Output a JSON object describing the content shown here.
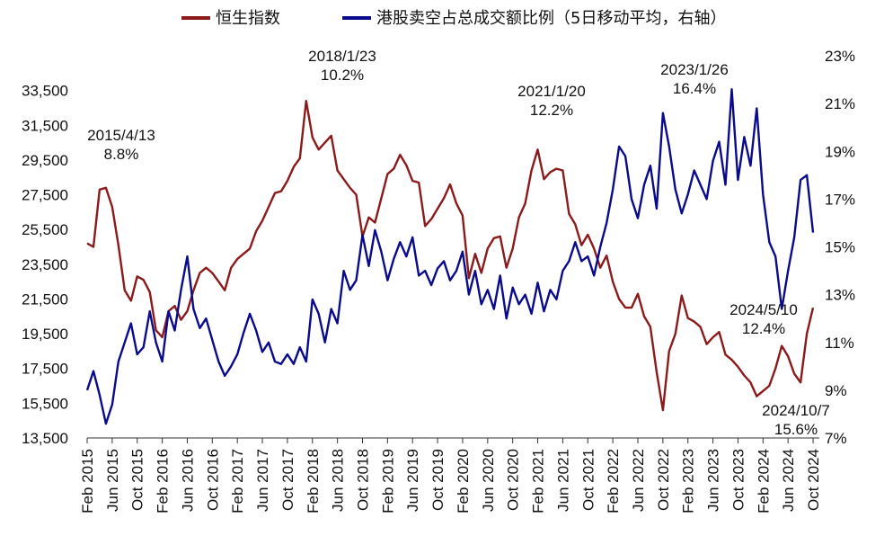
{
  "chart_data": {
    "type": "line",
    "legend": {
      "placement": "top-center",
      "entries": [
        {
          "label": "恒生指数",
          "color": "#8B1A1A"
        },
        {
          "label": "港股卖空占总成交额比例（5日移动平均，右轴）",
          "color": "#0A0A8C"
        }
      ]
    },
    "x_axis": {
      "range": [
        "2015-02",
        "2024-11"
      ],
      "tick_labels": [
        "Feb 2015",
        "Jun 2015",
        "Oct 2015",
        "Feb 2016",
        "Jun 2016",
        "Oct 2016",
        "Feb 2017",
        "Jun 2017",
        "Oct 2017",
        "Feb 2018",
        "Jun 2018",
        "Oct 2018",
        "Feb 2019",
        "Jun 2019",
        "Oct 2019",
        "Feb 2020",
        "Jun 2020",
        "Oct 2020",
        "Feb 2021",
        "Jun 2021",
        "Oct 2021",
        "Feb 2022",
        "Jun 2022",
        "Oct 2022",
        "Feb 2023",
        "Jun 2023",
        "Oct 2023",
        "Feb 2024",
        "Jun 2024",
        "Oct 2024"
      ]
    },
    "y_left": {
      "range": [
        13500,
        35500
      ],
      "tick_labels": [
        "13,500",
        "15,500",
        "17,500",
        "19,500",
        "21,500",
        "23,500",
        "25,500",
        "27,500",
        "29,500",
        "31,500",
        "33,500"
      ]
    },
    "y_right": {
      "range": [
        7,
        23
      ],
      "tick_labels": [
        "7%",
        "9%",
        "11%",
        "13%",
        "15%",
        "17%",
        "19%",
        "21%",
        "23%"
      ]
    },
    "grid": false,
    "annotations": [
      {
        "date": "2015/4/13",
        "value": "8.8%"
      },
      {
        "date": "2018/1/23",
        "value": "10.2%"
      },
      {
        "date": "2021/1/20",
        "value": "12.2%"
      },
      {
        "date": "2023/1/26",
        "value": "16.4%"
      },
      {
        "date": "2024/5/10",
        "value": "12.4%"
      },
      {
        "date": "2024/10/7",
        "value": "15.6%"
      }
    ],
    "series": [
      {
        "name": "恒生指数",
        "axis": "left",
        "color": "#8B1A1A",
        "x": [
          "2015-02",
          "2015-03",
          "2015-04",
          "2015-05",
          "2015-06",
          "2015-07",
          "2015-08",
          "2015-09",
          "2015-10",
          "2015-11",
          "2015-12",
          "2016-01",
          "2016-02",
          "2016-03",
          "2016-04",
          "2016-05",
          "2016-06",
          "2016-07",
          "2016-08",
          "2016-09",
          "2016-10",
          "2016-11",
          "2016-12",
          "2017-01",
          "2017-02",
          "2017-03",
          "2017-04",
          "2017-05",
          "2017-06",
          "2017-07",
          "2017-08",
          "2017-09",
          "2017-10",
          "2017-11",
          "2017-12",
          "2018-01",
          "2018-02",
          "2018-03",
          "2018-04",
          "2018-05",
          "2018-06",
          "2018-07",
          "2018-08",
          "2018-09",
          "2018-10",
          "2018-11",
          "2018-12",
          "2019-01",
          "2019-02",
          "2019-03",
          "2019-04",
          "2019-05",
          "2019-06",
          "2019-07",
          "2019-08",
          "2019-09",
          "2019-10",
          "2019-11",
          "2019-12",
          "2020-01",
          "2020-02",
          "2020-03",
          "2020-04",
          "2020-05",
          "2020-06",
          "2020-07",
          "2020-08",
          "2020-09",
          "2020-10",
          "2020-11",
          "2020-12",
          "2021-01",
          "2021-02",
          "2021-03",
          "2021-04",
          "2021-05",
          "2021-06",
          "2021-07",
          "2021-08",
          "2021-09",
          "2021-10",
          "2021-11",
          "2021-12",
          "2022-01",
          "2022-02",
          "2022-03",
          "2022-04",
          "2022-05",
          "2022-06",
          "2022-07",
          "2022-08",
          "2022-09",
          "2022-10",
          "2022-11",
          "2022-12",
          "2023-01",
          "2023-02",
          "2023-03",
          "2023-04",
          "2023-05",
          "2023-06",
          "2023-07",
          "2023-08",
          "2023-09",
          "2023-10",
          "2023-11",
          "2023-12",
          "2024-01",
          "2024-02",
          "2024-03",
          "2024-04",
          "2024-05",
          "2024-06",
          "2024-07",
          "2024-08",
          "2024-09",
          "2024-10"
        ],
        "values": [
          24700,
          24500,
          27800,
          27900,
          26800,
          24600,
          22000,
          21400,
          22800,
          22600,
          21900,
          19700,
          19300,
          20800,
          21100,
          20300,
          20800,
          22000,
          23000,
          23300,
          23000,
          22500,
          22000,
          23300,
          23800,
          24100,
          24400,
          25400,
          26000,
          26800,
          27600,
          27700,
          28300,
          29100,
          29600,
          32900,
          30800,
          30100,
          30500,
          30900,
          28900,
          28400,
          27900,
          27500,
          25100,
          26200,
          25900,
          27300,
          28700,
          29000,
          29800,
          29200,
          28300,
          28200,
          25700,
          26100,
          26700,
          27300,
          28100,
          27000,
          26300,
          22700,
          24100,
          23000,
          24400,
          25000,
          25100,
          23300,
          24400,
          26200,
          27000,
          28900,
          30100,
          28400,
          28800,
          29000,
          28900,
          26400,
          25800,
          24600,
          25200,
          24400,
          23300,
          24000,
          22500,
          21500,
          21000,
          21000,
          21800,
          20500,
          19900,
          17300,
          15100,
          18500,
          19500,
          21700,
          20400,
          20200,
          19900,
          18900,
          19300,
          19600,
          18300,
          18000,
          17600,
          17100,
          16700,
          15900,
          16200,
          16500,
          17500,
          18800,
          18200,
          17200,
          16700,
          19500,
          21000
        ]
      },
      {
        "name": "港股卖空占总成交额比例（5日移动平均，右轴）",
        "axis": "right",
        "color": "#0A0A8C",
        "x": [
          "2015-02",
          "2015-03",
          "2015-04",
          "2015-05",
          "2015-06",
          "2015-07",
          "2015-08",
          "2015-09",
          "2015-10",
          "2015-11",
          "2015-12",
          "2016-01",
          "2016-02",
          "2016-03",
          "2016-04",
          "2016-05",
          "2016-06",
          "2016-07",
          "2016-08",
          "2016-09",
          "2016-10",
          "2016-11",
          "2016-12",
          "2017-01",
          "2017-02",
          "2017-03",
          "2017-04",
          "2017-05",
          "2017-06",
          "2017-07",
          "2017-08",
          "2017-09",
          "2017-10",
          "2017-11",
          "2017-12",
          "2018-01",
          "2018-02",
          "2018-03",
          "2018-04",
          "2018-05",
          "2018-06",
          "2018-07",
          "2018-08",
          "2018-09",
          "2018-10",
          "2018-11",
          "2018-12",
          "2019-01",
          "2019-02",
          "2019-03",
          "2019-04",
          "2019-05",
          "2019-06",
          "2019-07",
          "2019-08",
          "2019-09",
          "2019-10",
          "2019-11",
          "2019-12",
          "2020-01",
          "2020-02",
          "2020-03",
          "2020-04",
          "2020-05",
          "2020-06",
          "2020-07",
          "2020-08",
          "2020-09",
          "2020-10",
          "2020-11",
          "2020-12",
          "2021-01",
          "2021-02",
          "2021-03",
          "2021-04",
          "2021-05",
          "2021-06",
          "2021-07",
          "2021-08",
          "2021-09",
          "2021-10",
          "2021-11",
          "2021-12",
          "2022-01",
          "2022-02",
          "2022-03",
          "2022-04",
          "2022-05",
          "2022-06",
          "2022-07",
          "2022-08",
          "2022-09",
          "2022-10",
          "2022-11",
          "2022-12",
          "2023-01",
          "2023-02",
          "2023-03",
          "2023-04",
          "2023-05",
          "2023-06",
          "2023-07",
          "2023-08",
          "2023-09",
          "2023-10",
          "2023-11",
          "2023-12",
          "2024-01",
          "2024-02",
          "2024-03",
          "2024-04",
          "2024-05",
          "2024-06",
          "2024-07",
          "2024-08",
          "2024-09",
          "2024-10"
        ],
        "values": [
          9.0,
          9.8,
          8.8,
          7.6,
          8.4,
          10.2,
          11.0,
          11.8,
          10.5,
          10.8,
          12.3,
          11.0,
          10.2,
          12.3,
          11.5,
          13.2,
          14.6,
          12.4,
          11.6,
          12.0,
          11.1,
          10.2,
          9.6,
          10.0,
          10.5,
          11.4,
          12.2,
          11.5,
          10.6,
          11.0,
          10.2,
          10.1,
          10.5,
          10.1,
          10.8,
          10.2,
          12.8,
          12.2,
          11.0,
          12.4,
          11.8,
          14.0,
          13.2,
          13.6,
          15.5,
          14.2,
          15.7,
          14.8,
          13.6,
          14.5,
          15.2,
          14.6,
          15.4,
          13.8,
          14.0,
          13.4,
          14.1,
          14.4,
          13.6,
          14.0,
          14.8,
          13.0,
          14.0,
          12.6,
          13.2,
          12.4,
          13.8,
          12.0,
          13.3,
          12.6,
          13.0,
          12.2,
          13.5,
          12.3,
          13.2,
          12.8,
          14.0,
          14.4,
          15.2,
          14.4,
          14.6,
          13.8,
          15.0,
          16.0,
          17.4,
          19.2,
          18.8,
          17.0,
          16.2,
          17.6,
          18.4,
          16.6,
          20.6,
          19.2,
          17.4,
          16.4,
          17.2,
          18.2,
          17.6,
          17.0,
          18.6,
          19.4,
          17.6,
          21.6,
          17.8,
          19.6,
          18.4,
          20.8,
          17.2,
          15.2,
          14.6,
          12.4,
          14.0,
          15.4,
          17.8,
          18.0,
          15.6
        ]
      }
    ]
  }
}
